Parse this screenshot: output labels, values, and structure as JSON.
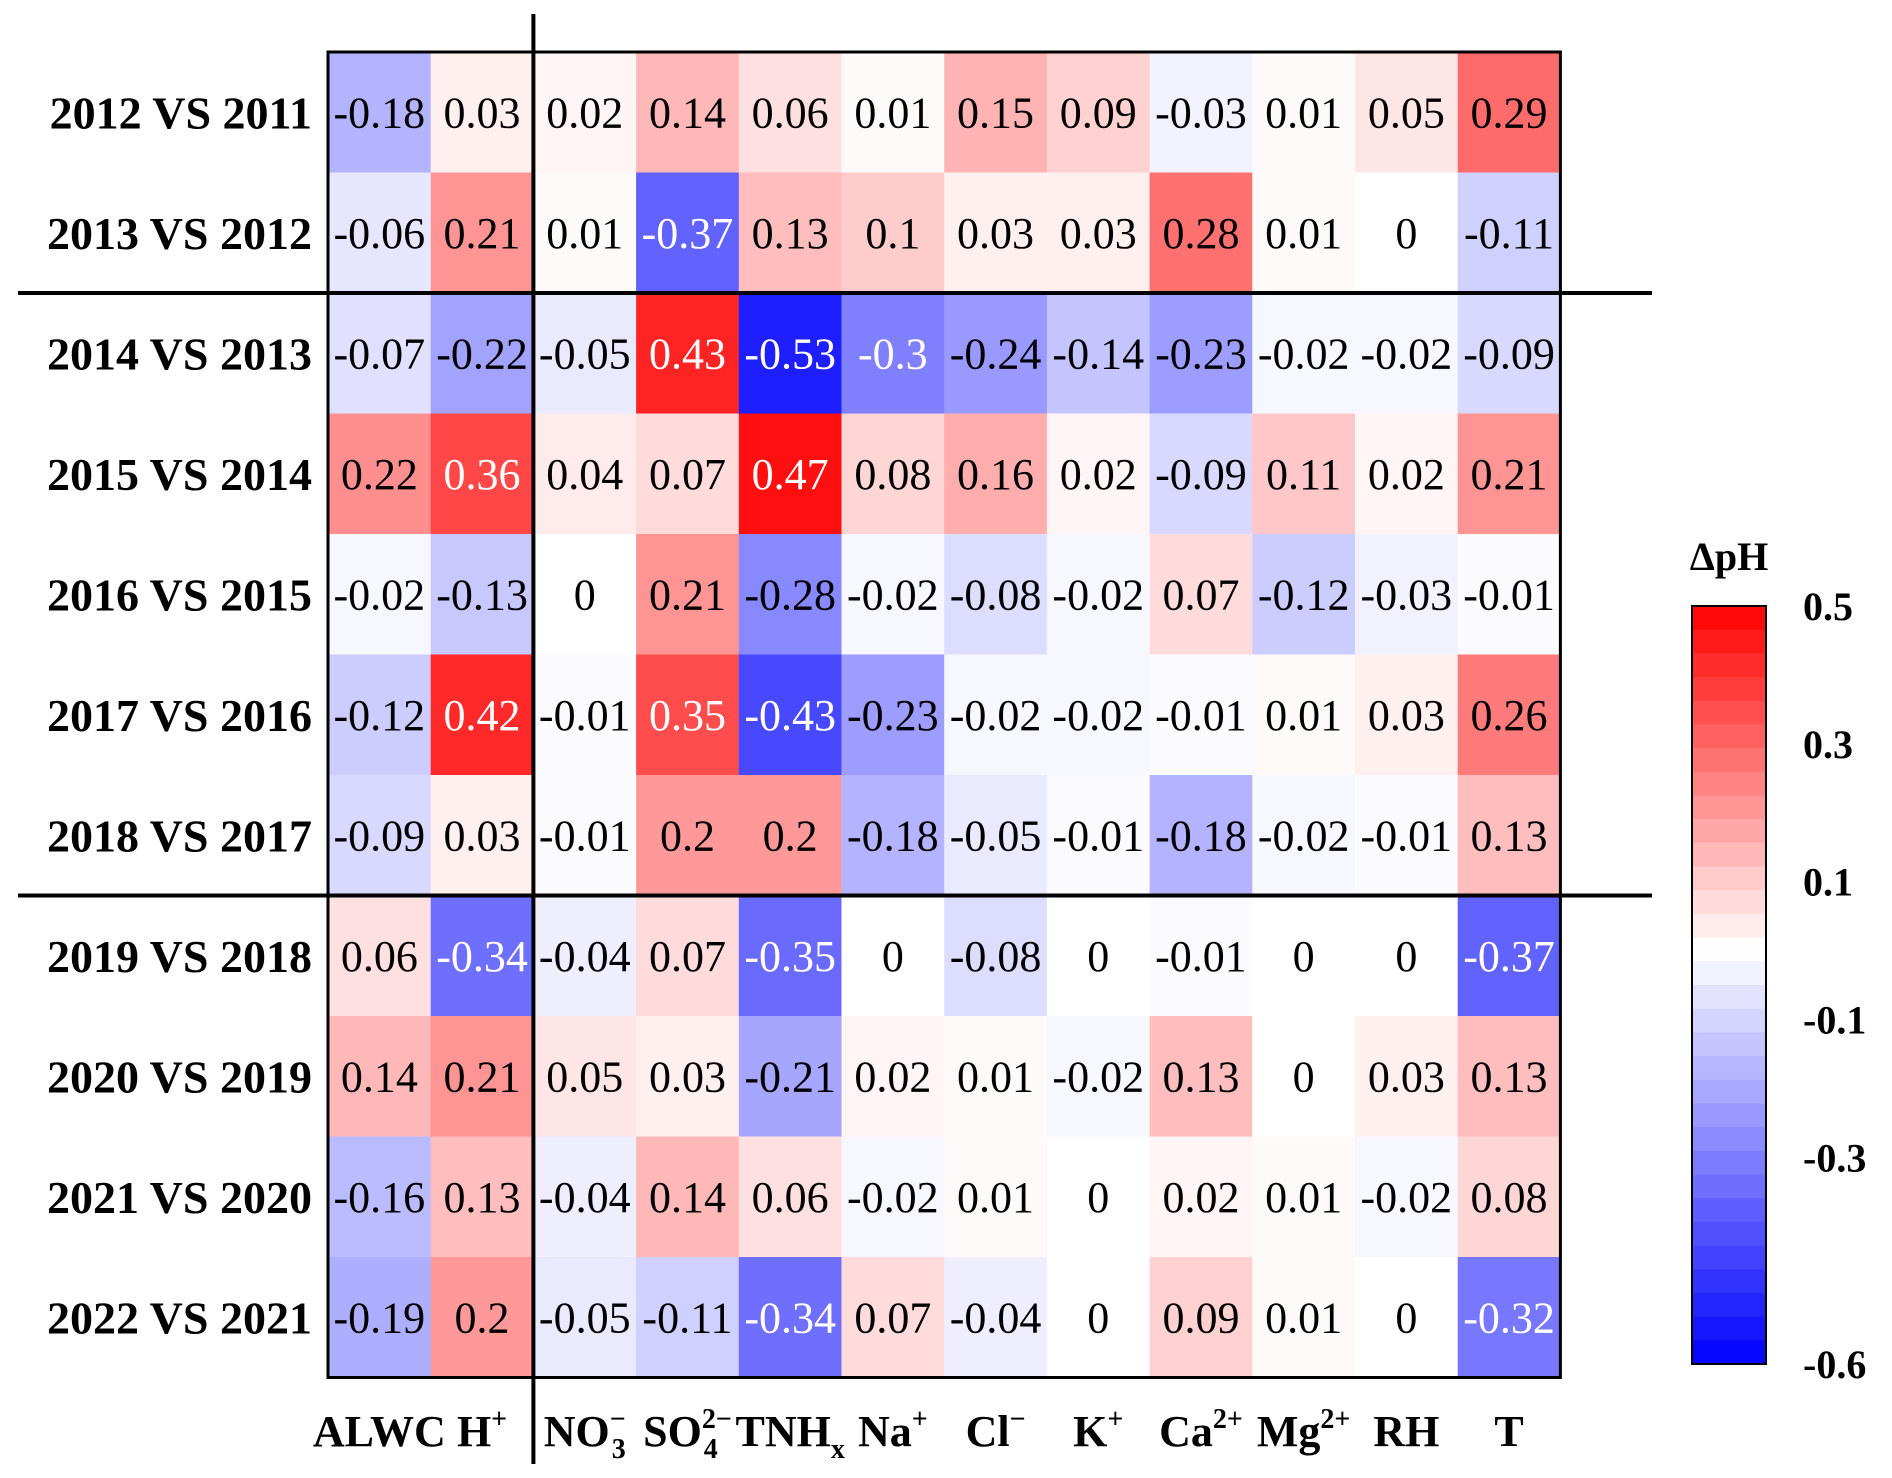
{
  "chart_data": {
    "type": "heatmap",
    "title": "",
    "colorbar_title": "ΔpH",
    "color_range": [
      -0.6,
      0.5
    ],
    "colorbar_ticks": [
      "0.5",
      "0.3",
      "0.1",
      "-0.1",
      "-0.3",
      "-0.6"
    ],
    "colors": {
      "low": "#0000ff",
      "mid": "#ffffff",
      "high": "#ff0000"
    },
    "columns": [
      {
        "text": "ALWC"
      },
      {
        "text": "H",
        "sup": "+"
      },
      {
        "text": "NO",
        "sub": "3",
        "sup": "−"
      },
      {
        "text": "SO",
        "sub": "4",
        "sup": "2−"
      },
      {
        "text": "TNH",
        "sub": "x"
      },
      {
        "text": "Na",
        "sup": "+"
      },
      {
        "text": "Cl",
        "sup": "−"
      },
      {
        "text": "K",
        "sup": "+"
      },
      {
        "text": "Ca",
        "sup": "2+"
      },
      {
        "text": "Mg",
        "sup": "2+"
      },
      {
        "text": "RH"
      },
      {
        "text": "T"
      }
    ],
    "rows": [
      "2012 VS 2011",
      "2013 VS 2012",
      "2014 VS 2013",
      "2015 VS 2014",
      "2016 VS 2015",
      "2017 VS 2016",
      "2018 VS 2017",
      "2019 VS 2018",
      "2020 VS 2019",
      "2021 VS 2020",
      "2022 VS 2021"
    ],
    "values": [
      [
        "-0.18",
        "0.03",
        "0.02",
        "0.14",
        "0.06",
        "0.01",
        "0.15",
        "0.09",
        "-0.03",
        "0.01",
        "0.05",
        "0.29"
      ],
      [
        "-0.06",
        "0.21",
        "0.01",
        "-0.37",
        "0.13",
        "0.1",
        "0.03",
        "0.03",
        "0.28",
        "0.01",
        "0",
        "-0.11"
      ],
      [
        "-0.07",
        "-0.22",
        "-0.05",
        "0.43",
        "-0.53",
        "-0.3",
        "-0.24",
        "-0.14",
        "-0.23",
        "-0.02",
        "-0.02",
        "-0.09"
      ],
      [
        "0.22",
        "0.36",
        "0.04",
        "0.07",
        "0.47",
        "0.08",
        "0.16",
        "0.02",
        "-0.09",
        "0.11",
        "0.02",
        "0.21"
      ],
      [
        "-0.02",
        "-0.13",
        "0",
        "0.21",
        "-0.28",
        "-0.02",
        "-0.08",
        "-0.02",
        "0.07",
        "-0.12",
        "-0.03",
        "-0.01"
      ],
      [
        "-0.12",
        "0.42",
        "-0.01",
        "0.35",
        "-0.43",
        "-0.23",
        "-0.02",
        "-0.02",
        "-0.01",
        "0.01",
        "0.03",
        "0.26"
      ],
      [
        "-0.09",
        "0.03",
        "-0.01",
        "0.2",
        "0.2",
        "-0.18",
        "-0.05",
        "-0.01",
        "-0.18",
        "-0.02",
        "-0.01",
        "0.13"
      ],
      [
        "0.06",
        "-0.34",
        "-0.04",
        "0.07",
        "-0.35",
        "0",
        "-0.08",
        "0",
        "-0.01",
        "0",
        "0",
        "-0.37"
      ],
      [
        "0.14",
        "0.21",
        "0.05",
        "0.03",
        "-0.21",
        "0.02",
        "0.01",
        "-0.02",
        "0.13",
        "0",
        "0.03",
        "0.13"
      ],
      [
        "-0.16",
        "0.13",
        "-0.04",
        "0.14",
        "0.06",
        "-0.02",
        "0.01",
        "0",
        "0.02",
        "0.01",
        "-0.02",
        "0.08"
      ],
      [
        "-0.19",
        "0.2",
        "-0.05",
        "-0.11",
        "-0.34",
        "0.07",
        "-0.04",
        "0",
        "0.09",
        "0.01",
        "0",
        "-0.32"
      ]
    ],
    "group_separators": {
      "after_rows": [
        2,
        7
      ],
      "after_columns": [
        2
      ]
    }
  }
}
